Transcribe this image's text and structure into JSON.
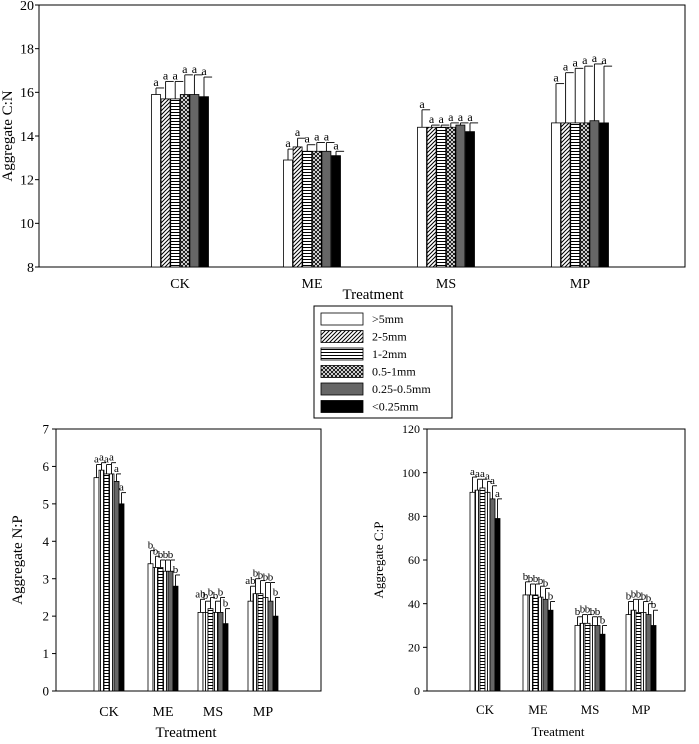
{
  "legend": {
    "items": [
      {
        "label": ">5mm",
        "pattern": "white"
      },
      {
        "label": "2-5mm",
        "pattern": "diag"
      },
      {
        "label": "1-2mm",
        "pattern": "horiz"
      },
      {
        "label": "0.5-1mm",
        "pattern": "cross"
      },
      {
        "label": "0.25-0.5mm",
        "pattern": "gray"
      },
      {
        "label": "<0.25mm",
        "pattern": "black"
      }
    ]
  },
  "colors": {
    "gray": "#666666",
    "black": "#000000",
    "white": "#ffffff"
  },
  "chart_data": [
    {
      "id": "cn",
      "type": "bar",
      "title": "",
      "xlabel": "Treatment",
      "ylabel": "Aggregate C:N",
      "ylim": [
        8,
        20
      ],
      "yticks": [
        8,
        10,
        12,
        14,
        16,
        18,
        20
      ],
      "categories": [
        "CK",
        "ME",
        "MS",
        "MP"
      ],
      "series": [
        {
          "name": ">5mm",
          "values": [
            15.9,
            12.9,
            14.4,
            14.6
          ],
          "errors": [
            0.3,
            0.5,
            0.8,
            1.8
          ],
          "labels": [
            "a",
            "a",
            "a",
            "a"
          ]
        },
        {
          "name": "2-5mm",
          "values": [
            15.7,
            13.5,
            14.4,
            14.6
          ],
          "errors": [
            0.8,
            0.4,
            0.1,
            2.3
          ],
          "labels": [
            "a",
            "a",
            "a",
            "a"
          ]
        },
        {
          "name": "1-2mm",
          "values": [
            15.7,
            13.3,
            14.4,
            14.6
          ],
          "errors": [
            0.8,
            0.3,
            0.1,
            2.5
          ],
          "labels": [
            "a",
            "a",
            "a",
            "a"
          ]
        },
        {
          "name": "0.5-1mm",
          "values": [
            15.9,
            13.3,
            14.4,
            14.6
          ],
          "errors": [
            0.9,
            0.4,
            0.2,
            2.6
          ],
          "labels": [
            "a",
            "a",
            "a",
            "a"
          ]
        },
        {
          "name": "0.25-0.5mm",
          "values": [
            15.9,
            13.3,
            14.5,
            14.7
          ],
          "errors": [
            0.9,
            0.4,
            0.1,
            2.6
          ],
          "labels": [
            "a",
            "a",
            "a",
            "a"
          ]
        },
        {
          "name": "<0.25mm",
          "values": [
            15.8,
            13.1,
            14.2,
            14.6
          ],
          "errors": [
            0.9,
            0.2,
            0.4,
            2.6
          ],
          "labels": [
            "a",
            "a",
            "a",
            "a"
          ]
        }
      ]
    },
    {
      "id": "np",
      "type": "bar",
      "title": "",
      "xlabel": "Treatment",
      "ylabel": "Aggregate N:P",
      "ylim": [
        0,
        7
      ],
      "yticks": [
        0,
        1,
        2,
        3,
        4,
        5,
        6,
        7
      ],
      "categories": [
        "CK",
        "ME",
        "MS",
        "MP"
      ],
      "series": [
        {
          "name": ">5mm",
          "values": [
            5.7,
            3.4,
            2.1,
            2.4
          ],
          "errors": [
            0.35,
            0.35,
            0.35,
            0.4
          ],
          "labels": [
            "a",
            "b",
            "ab",
            "ab"
          ]
        },
        {
          "name": "2-5mm",
          "values": [
            5.9,
            3.3,
            2.1,
            2.6
          ],
          "errors": [
            0.2,
            0.3,
            0.3,
            0.4
          ],
          "labels": [
            "a",
            "b",
            "b",
            "b"
          ]
        },
        {
          "name": "1-2mm",
          "values": [
            5.8,
            3.3,
            2.2,
            2.6
          ],
          "errors": [
            0.25,
            0.2,
            0.3,
            0.35
          ],
          "labels": [
            "a",
            "b",
            "b",
            "b"
          ]
        },
        {
          "name": "0.5-1mm",
          "values": [
            5.8,
            3.2,
            2.1,
            2.5
          ],
          "errors": [
            0.3,
            0.3,
            0.3,
            0.4
          ],
          "labels": [
            "a",
            "b",
            "b",
            "b"
          ]
        },
        {
          "name": "0.25-0.5mm",
          "values": [
            5.6,
            3.2,
            2.1,
            2.4
          ],
          "errors": [
            0.2,
            0.3,
            0.4,
            0.5
          ],
          "labels": [
            "a",
            "b",
            "b",
            "b"
          ]
        },
        {
          "name": "<0.25mm",
          "values": [
            5.0,
            2.8,
            1.8,
            2.0
          ],
          "errors": [
            0.3,
            0.3,
            0.4,
            0.5
          ],
          "labels": [
            "a",
            "b",
            "b",
            "b"
          ]
        }
      ]
    },
    {
      "id": "cp",
      "type": "bar",
      "title": "",
      "xlabel": "Treatment",
      "ylabel": "Aggregate C:P",
      "ylim": [
        0,
        120
      ],
      "yticks": [
        0,
        20,
        40,
        60,
        80,
        100,
        120
      ],
      "categories": [
        "CK",
        "ME",
        "MS",
        "MP"
      ],
      "series": [
        {
          "name": ">5mm",
          "values": [
            91,
            44,
            30,
            35
          ],
          "errors": [
            7,
            6,
            4,
            6
          ],
          "labels": [
            "a",
            "b",
            "b",
            "b"
          ]
        },
        {
          "name": "2-5mm",
          "values": [
            92,
            44,
            31,
            37
          ],
          "errors": [
            5,
            5,
            4,
            5
          ],
          "labels": [
            "a",
            "b",
            "b",
            "b"
          ]
        },
        {
          "name": "1-2mm",
          "values": [
            93,
            44,
            31,
            36
          ],
          "errors": [
            4,
            5,
            4,
            6
          ],
          "labels": [
            "a",
            "b",
            "b",
            "b"
          ]
        },
        {
          "name": "0.5-1mm",
          "values": [
            91,
            43,
            30,
            36
          ],
          "errors": [
            5,
            5,
            4,
            5
          ],
          "labels": [
            "a",
            "b",
            "b",
            "b"
          ]
        },
        {
          "name": "0.25-0.5mm",
          "values": [
            88,
            42,
            30,
            35
          ],
          "errors": [
            6,
            5,
            4,
            5
          ],
          "labels": [
            "a",
            "b",
            "b",
            "b"
          ]
        },
        {
          "name": "<0.25mm",
          "values": [
            79,
            37,
            26,
            30
          ],
          "errors": [
            9,
            4,
            4,
            7
          ],
          "labels": [
            "a",
            "b",
            "b",
            "b"
          ]
        }
      ]
    }
  ]
}
